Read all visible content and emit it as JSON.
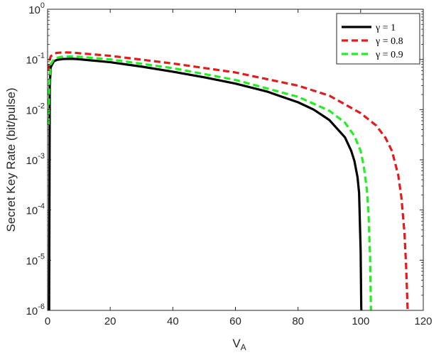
{
  "chart_data": {
    "type": "line",
    "xlabel": "V",
    "xlabel_subscript": "A",
    "ylabel": "Secret Key Rate (bit/pulse)",
    "x_ticks": [
      "0",
      "20",
      "40",
      "60",
      "80",
      "100",
      "120"
    ],
    "y_tick_base": "10",
    "y_tick_exponents": [
      "-6",
      "-5",
      "-4",
      "-3",
      "-2",
      "-1",
      "0"
    ],
    "xlim": [
      0,
      120
    ],
    "ylim": [
      1e-06,
      1
    ],
    "yscale": "log",
    "grid": false,
    "legend_position": "top-right",
    "series": [
      {
        "name": "γ = 1",
        "color": "#000000",
        "dash": "solid",
        "x": [
          0.5,
          0.7,
          1,
          2,
          3,
          5,
          8,
          10,
          20,
          30,
          40,
          50,
          60,
          70,
          80,
          85,
          90,
          95,
          97,
          98,
          99,
          99.5,
          100,
          100.2
        ],
        "y": [
          1e-06,
          0.03,
          0.07,
          0.092,
          0.098,
          0.102,
          0.103,
          0.101,
          0.088,
          0.072,
          0.057,
          0.044,
          0.033,
          0.023,
          0.014,
          0.01,
          0.0062,
          0.0028,
          0.0015,
          0.00095,
          0.00045,
          0.00022,
          1.5e-05,
          1e-06
        ]
      },
      {
        "name": "γ = 0.8",
        "color": "#e41a1c",
        "dash": "dashed",
        "x": [
          0.3,
          0.5,
          1,
          2,
          3,
          5,
          8,
          10,
          20,
          40,
          60,
          80,
          90,
          100,
          105,
          108,
          110,
          112,
          113,
          114,
          114.5,
          114.8,
          115
        ],
        "y": [
          0.06,
          0.09,
          0.115,
          0.13,
          0.135,
          0.138,
          0.137,
          0.133,
          0.118,
          0.083,
          0.055,
          0.03,
          0.019,
          0.0085,
          0.0048,
          0.0027,
          0.0015,
          0.0005,
          0.00018,
          3.5e-05,
          8e-06,
          2.5e-06,
          1e-06
        ]
      },
      {
        "name": "γ = 0.9",
        "color": "#22ee22",
        "dash": "dashed",
        "x": [
          0.3,
          0.5,
          1,
          2,
          3,
          5,
          8,
          10,
          20,
          40,
          60,
          80,
          90,
          95,
          98,
          100,
          101,
          102,
          102.5,
          103,
          103.3
        ],
        "y": [
          0.005,
          0.03,
          0.08,
          0.1,
          0.108,
          0.114,
          0.115,
          0.113,
          0.1,
          0.067,
          0.039,
          0.018,
          0.0095,
          0.0055,
          0.003,
          0.0015,
          0.00075,
          0.00025,
          9e-05,
          1.2e-05,
          1e-06
        ]
      }
    ]
  }
}
